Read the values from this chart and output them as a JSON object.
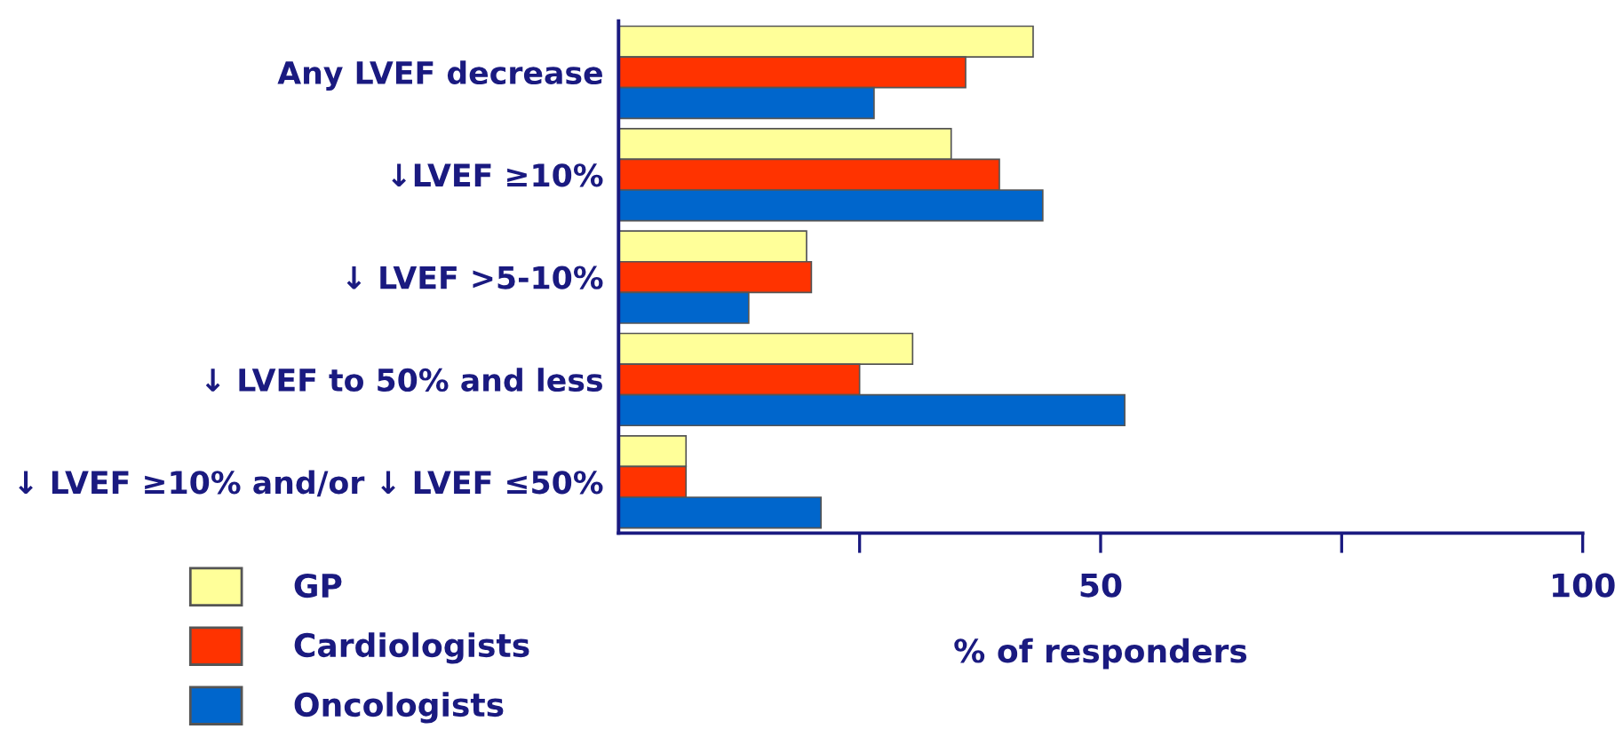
{
  "chart_data": {
    "type": "bar",
    "orientation": "horizontal",
    "xlabel": "% of responders",
    "categories": [
      "Any LVEF decrease",
      "↓LVEF ≥10%",
      "↓ LVEF >5-10%",
      "↓ LVEF to 50% and less",
      "↓ LVEF ≥10% and/or ↓ LVEF ≤50%"
    ],
    "series": [
      {
        "name": "GP",
        "color": "#ffff99",
        "values": [
          43,
          34.5,
          19.5,
          30.5,
          7
        ]
      },
      {
        "name": "Cardiologists",
        "color": "#ff3300",
        "values": [
          36,
          39.5,
          20,
          25,
          7
        ]
      },
      {
        "name": "Oncologists",
        "color": "#0066cc",
        "values": [
          26.5,
          44,
          13.5,
          52.5,
          21
        ]
      }
    ],
    "xlim": [
      0,
      100
    ],
    "xticks": [
      {
        "value": 25,
        "label": null
      },
      50,
      {
        "value": 75,
        "label": null
      },
      100
    ],
    "grid": false,
    "legend": "bottom left"
  }
}
